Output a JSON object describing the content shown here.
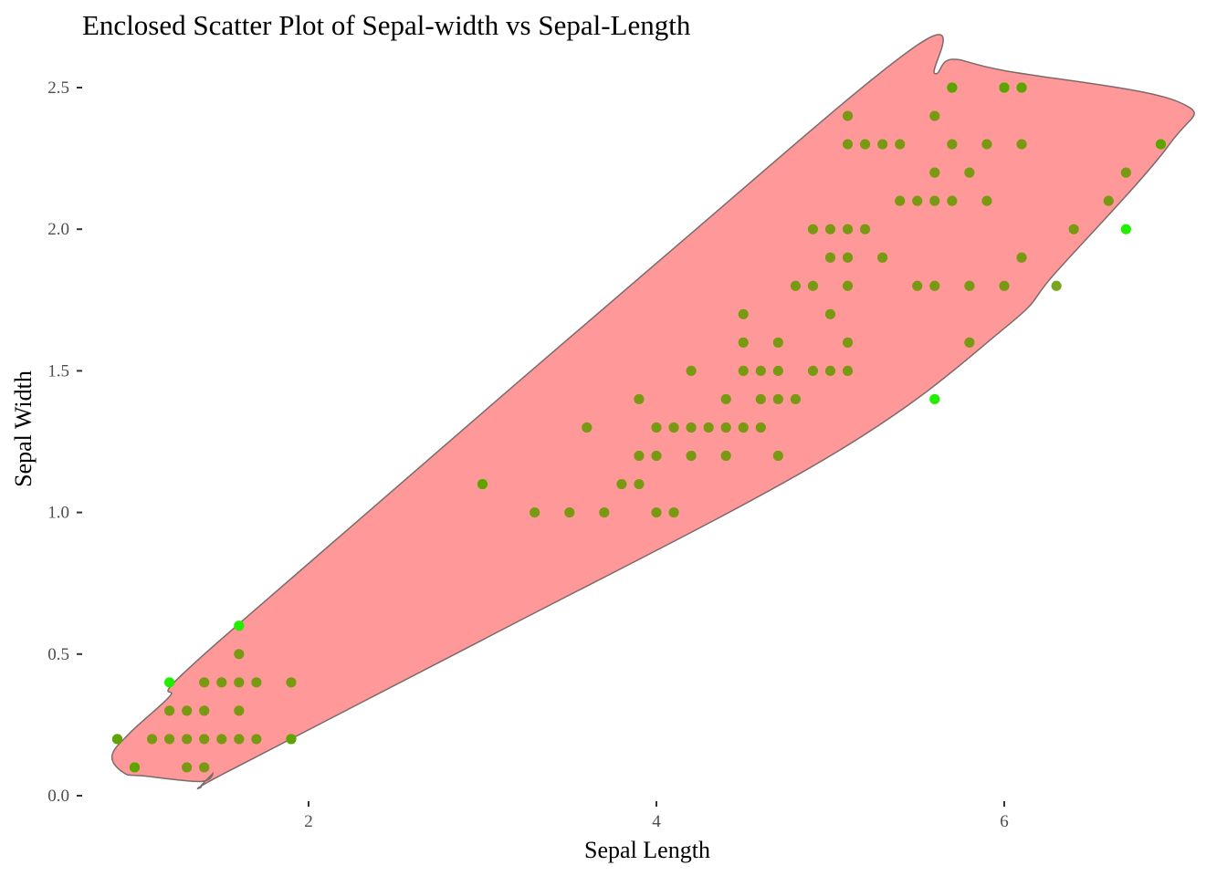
{
  "chart_data": {
    "type": "scatter",
    "title": "Enclosed Scatter Plot of Sepal-width vs Sepal-Length",
    "xlabel": "Sepal Length",
    "ylabel": "Sepal Width",
    "xlim": [
      0.75,
      7.05
    ],
    "ylim": [
      0.0,
      2.6
    ],
    "x_ticks": [
      2,
      4,
      6
    ],
    "x_tick_labels": [
      "2",
      "4",
      "6"
    ],
    "y_ticks": [
      0.0,
      0.5,
      1.0,
      1.5,
      2.0,
      2.5
    ],
    "y_tick_labels": [
      "0.0",
      "0.5",
      "1.0",
      "1.5",
      "2.0",
      "2.5"
    ],
    "grid": false,
    "legend": "none",
    "colors": {
      "points": "#669900",
      "highlight_points": "#22ee00",
      "enclosure_fill": "#ff7f7f",
      "enclosure_stroke": "#7a6a6a"
    },
    "enclosure": [
      [
        1.2,
        0.35
      ],
      [
        0.97,
        0.22
      ],
      [
        0.87,
        0.14
      ],
      [
        0.94,
        0.08
      ],
      [
        1.05,
        0.07
      ],
      [
        1.38,
        0.05
      ],
      [
        1.45,
        0.08
      ],
      [
        1.38,
        0.03
      ],
      [
        1.55,
        0.09
      ],
      [
        3.0,
        0.55
      ],
      [
        5.0,
        1.2
      ],
      [
        6.0,
        1.65
      ],
      [
        6.3,
        1.85
      ],
      [
        6.95,
        2.3
      ],
      [
        7.0,
        2.45
      ],
      [
        6.0,
        2.56
      ],
      [
        5.7,
        2.6
      ],
      [
        5.6,
        2.55
      ],
      [
        5.5,
        2.65
      ],
      [
        4.0,
        1.88
      ],
      [
        2.0,
        0.82
      ],
      [
        1.26,
        0.42
      ]
    ],
    "series": [
      {
        "points": [
          [
            0.9,
            0.2
          ],
          [
            1.0,
            0.1
          ],
          [
            1.1,
            0.2
          ],
          [
            1.2,
            0.2
          ],
          [
            1.2,
            0.3
          ],
          [
            1.3,
            0.2
          ],
          [
            1.3,
            0.3
          ],
          [
            1.3,
            0.1
          ],
          [
            1.4,
            0.2
          ],
          [
            1.4,
            0.3
          ],
          [
            1.4,
            0.4
          ],
          [
            1.4,
            0.1
          ],
          [
            1.5,
            0.2
          ],
          [
            1.5,
            0.4
          ],
          [
            1.6,
            0.2
          ],
          [
            1.6,
            0.4
          ],
          [
            1.6,
            0.3
          ],
          [
            1.6,
            0.5
          ],
          [
            1.7,
            0.4
          ],
          [
            1.7,
            0.2
          ],
          [
            1.9,
            0.4
          ],
          [
            1.9,
            0.2
          ],
          [
            3.0,
            1.1
          ],
          [
            3.3,
            1.0
          ],
          [
            3.5,
            1.0
          ],
          [
            3.6,
            1.3
          ],
          [
            3.7,
            1.0
          ],
          [
            3.8,
            1.1
          ],
          [
            3.9,
            1.4
          ],
          [
            3.9,
            1.2
          ],
          [
            3.9,
            1.1
          ],
          [
            4.0,
            1.3
          ],
          [
            4.0,
            1.2
          ],
          [
            4.0,
            1.0
          ],
          [
            4.1,
            1.3
          ],
          [
            4.1,
            1.0
          ],
          [
            4.2,
            1.5
          ],
          [
            4.2,
            1.3
          ],
          [
            4.2,
            1.2
          ],
          [
            4.3,
            1.3
          ],
          [
            4.4,
            1.4
          ],
          [
            4.4,
            1.3
          ],
          [
            4.4,
            1.2
          ],
          [
            4.5,
            1.7
          ],
          [
            4.5,
            1.6
          ],
          [
            4.5,
            1.5
          ],
          [
            4.5,
            1.3
          ],
          [
            4.6,
            1.5
          ],
          [
            4.6,
            1.4
          ],
          [
            4.6,
            1.3
          ],
          [
            4.7,
            1.6
          ],
          [
            4.7,
            1.5
          ],
          [
            4.7,
            1.4
          ],
          [
            4.7,
            1.2
          ],
          [
            4.8,
            1.8
          ],
          [
            4.8,
            1.4
          ],
          [
            4.9,
            2.0
          ],
          [
            4.9,
            1.8
          ],
          [
            4.9,
            1.5
          ],
          [
            5.0,
            2.0
          ],
          [
            5.0,
            1.9
          ],
          [
            5.0,
            1.7
          ],
          [
            5.0,
            1.5
          ],
          [
            5.1,
            2.4
          ],
          [
            5.1,
            2.3
          ],
          [
            5.1,
            2.0
          ],
          [
            5.1,
            1.9
          ],
          [
            5.1,
            1.8
          ],
          [
            5.1,
            1.6
          ],
          [
            5.1,
            1.5
          ],
          [
            5.2,
            2.3
          ],
          [
            5.2,
            2.0
          ],
          [
            5.3,
            2.3
          ],
          [
            5.3,
            1.9
          ],
          [
            5.4,
            2.3
          ],
          [
            5.4,
            2.1
          ],
          [
            5.5,
            2.1
          ],
          [
            5.5,
            1.8
          ],
          [
            5.6,
            2.4
          ],
          [
            5.6,
            2.2
          ],
          [
            5.6,
            2.1
          ],
          [
            5.6,
            1.8
          ],
          [
            5.7,
            2.5
          ],
          [
            5.7,
            2.3
          ],
          [
            5.7,
            2.1
          ],
          [
            5.8,
            2.2
          ],
          [
            5.8,
            1.8
          ],
          [
            5.8,
            1.6
          ],
          [
            5.9,
            2.3
          ],
          [
            5.9,
            2.1
          ],
          [
            6.0,
            2.5
          ],
          [
            6.0,
            1.8
          ],
          [
            6.1,
            2.5
          ],
          [
            6.1,
            2.3
          ],
          [
            6.1,
            1.9
          ],
          [
            6.3,
            1.8
          ],
          [
            6.4,
            2.0
          ],
          [
            6.6,
            2.1
          ],
          [
            6.7,
            2.2
          ],
          [
            6.9,
            2.3
          ]
        ]
      },
      {
        "points": [
          [
            0.9,
            0.2
          ],
          [
            1.0,
            0.1
          ],
          [
            1.2,
            0.4
          ],
          [
            1.6,
            0.6
          ],
          [
            1.9,
            0.2
          ],
          [
            3.0,
            1.1
          ],
          [
            5.6,
            1.4
          ],
          [
            5.7,
            2.5
          ],
          [
            6.0,
            2.5
          ],
          [
            6.1,
            2.5
          ],
          [
            6.7,
            2.0
          ],
          [
            6.9,
            2.3
          ]
        ]
      }
    ]
  }
}
